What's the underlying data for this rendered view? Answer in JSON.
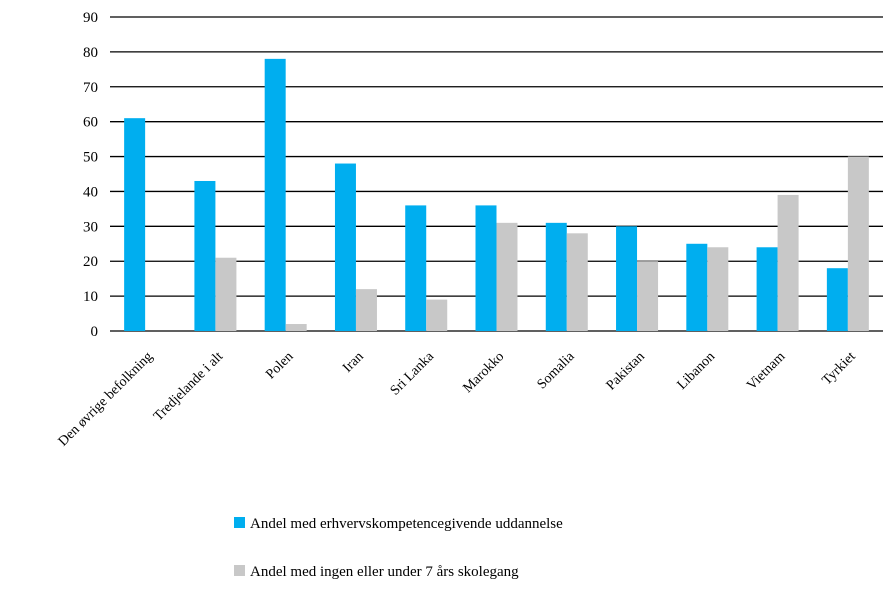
{
  "chart_data": {
    "type": "bar",
    "categories": [
      "Den øvrige befolkning",
      "Tredjelande i alt",
      "Polen",
      "Iran",
      "Sri Lanka",
      "Marokko",
      "Somalia",
      "Pakistan",
      "Libanon",
      "Vietnam",
      "Tyrkiet"
    ],
    "series": [
      {
        "name": "Andel med erhvervskompetencegivende uddannelse",
        "color": "#00aeef",
        "values": [
          61,
          43,
          78,
          48,
          36,
          36,
          31,
          30,
          25,
          24,
          18
        ]
      },
      {
        "name": "Andel med ingen eller under 7 års skolegang",
        "color": "#c8c8c8",
        "values": [
          null,
          21,
          2,
          12,
          9,
          31,
          28,
          20,
          24,
          39,
          50
        ]
      }
    ],
    "ylim": [
      0,
      90
    ],
    "yticks": [
      "0",
      "10",
      "20",
      "30",
      "40",
      "50",
      "60",
      "70",
      "80",
      "90"
    ],
    "grid": true,
    "legend_position": "bottom"
  }
}
